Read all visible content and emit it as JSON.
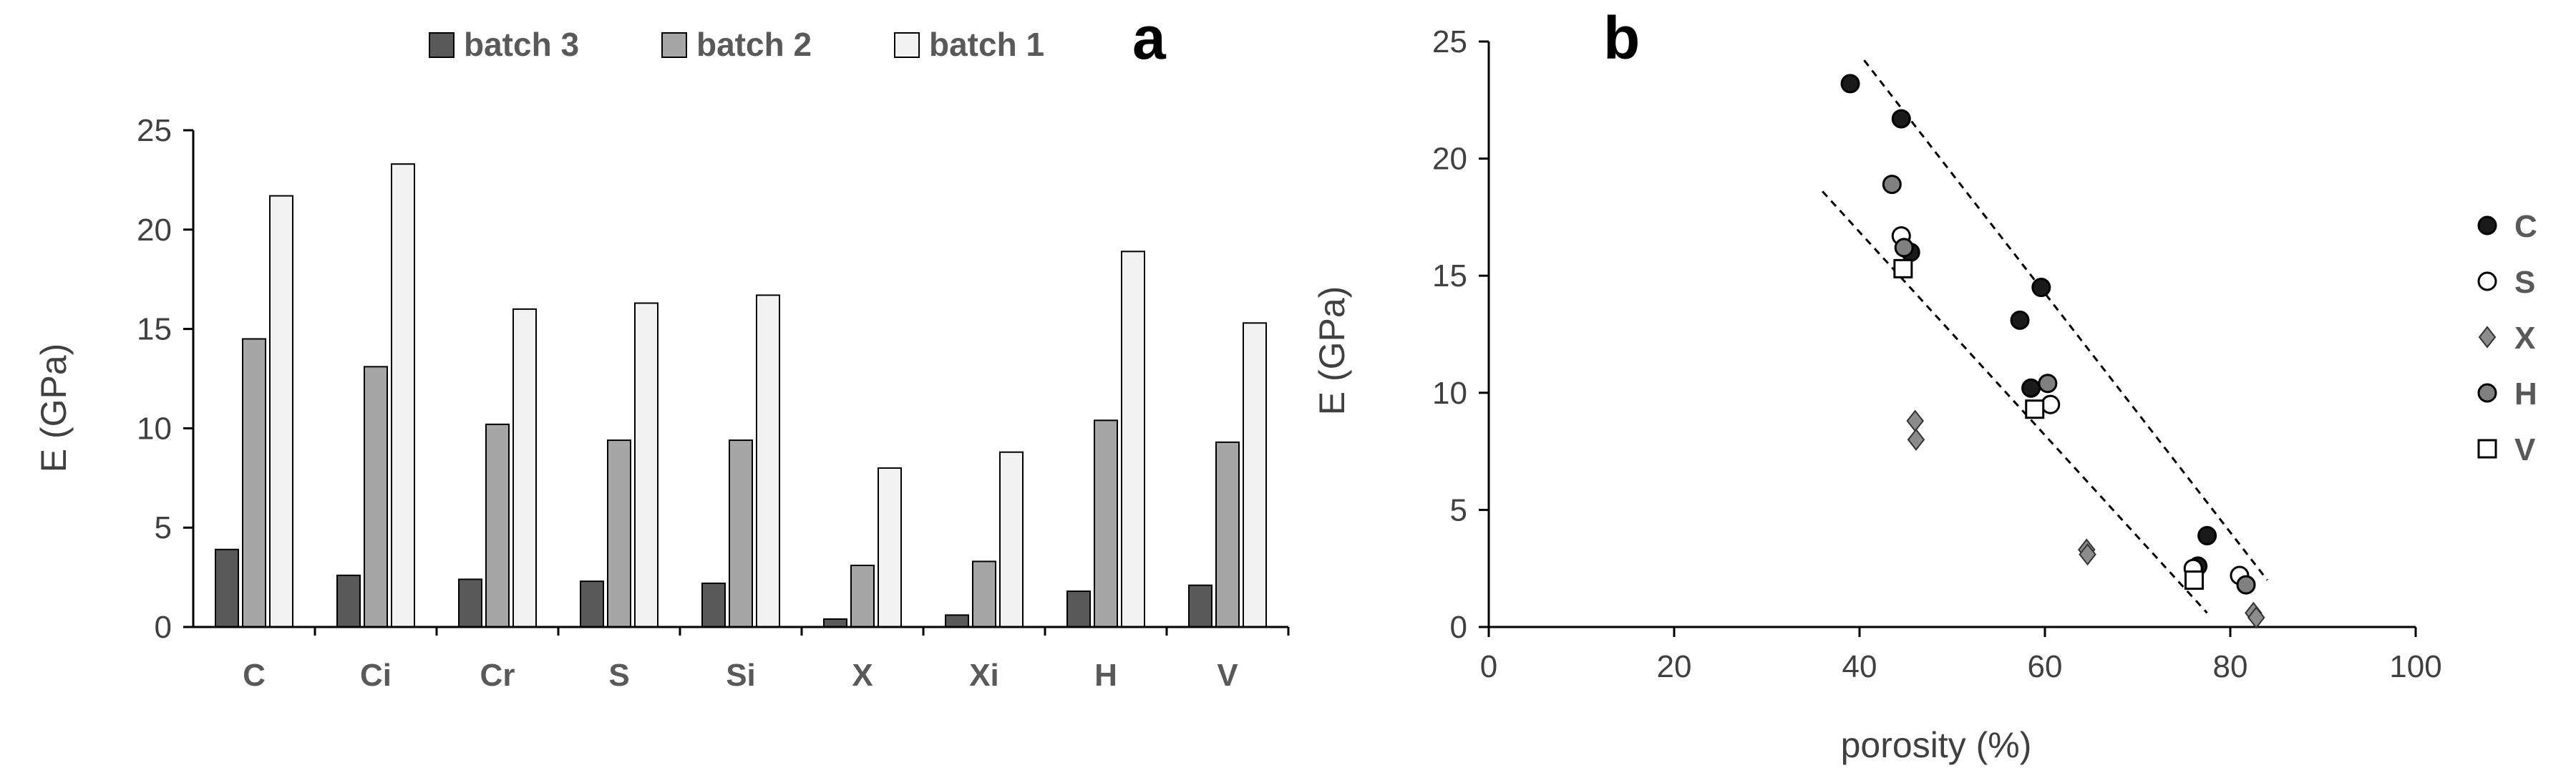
{
  "panels": {
    "a": {
      "letter": "a"
    },
    "b": {
      "letter": "b"
    }
  },
  "chart_data": [
    {
      "type": "bar",
      "panel": "a",
      "title": "",
      "xlabel": "",
      "ylabel": "E (GPa)",
      "ylim": [
        0,
        25
      ],
      "yticks": [
        0,
        5,
        10,
        15,
        20,
        25
      ],
      "grid": false,
      "legend_position": "top",
      "categories": [
        "C",
        "Ci",
        "Cr",
        "S",
        "Si",
        "X",
        "Xi",
        "H",
        "V"
      ],
      "series": [
        {
          "name": "batch 3",
          "color": "#595959",
          "values": [
            3.9,
            2.6,
            2.4,
            2.3,
            2.2,
            0.4,
            0.6,
            1.8,
            2.1
          ]
        },
        {
          "name": "batch 2",
          "color": "#a6a6a6",
          "values": [
            14.5,
            13.1,
            10.2,
            9.4,
            9.4,
            3.1,
            3.3,
            10.4,
            9.3
          ]
        },
        {
          "name": "batch 1",
          "color": "#f2f2f2",
          "values": [
            21.7,
            23.3,
            16.0,
            16.3,
            16.7,
            8.0,
            8.8,
            18.9,
            15.3
          ]
        }
      ],
      "legend_order": [
        0,
        1,
        2
      ]
    },
    {
      "type": "scatter",
      "panel": "b",
      "title": "",
      "xlabel": "porosity (%)",
      "ylabel": "E (GPa)",
      "xlim": [
        0,
        100
      ],
      "ylim": [
        0,
        25
      ],
      "xticks": [
        0,
        20,
        40,
        60,
        80,
        100
      ],
      "yticks": [
        0,
        5,
        10,
        15,
        20,
        25
      ],
      "grid": false,
      "legend_position": "right",
      "series": [
        {
          "name": "C",
          "marker": "circle",
          "fill": "#1a1a1a",
          "stroke": "#000000",
          "points": [
            [
              39,
              23.2
            ],
            [
              44.5,
              21.7
            ],
            [
              45.5,
              16.0
            ],
            [
              57.3,
              13.1
            ],
            [
              58.5,
              10.2
            ],
            [
              59.6,
              14.5
            ],
            [
              76.5,
              2.6
            ],
            [
              77.5,
              3.9
            ]
          ]
        },
        {
          "name": "S",
          "marker": "circle",
          "fill": "#ffffff",
          "stroke": "#000000",
          "points": [
            [
              44.5,
              16.7
            ],
            [
              60.6,
              9.5
            ],
            [
              76,
              2.5
            ],
            [
              81,
              2.2
            ]
          ]
        },
        {
          "name": "X",
          "marker": "diamond",
          "fill": "#8c8c8c",
          "stroke": "#333333",
          "points": [
            [
              46,
              8.8
            ],
            [
              46.1,
              8.0
            ],
            [
              64.5,
              3.3
            ],
            [
              64.6,
              3.1
            ],
            [
              82.5,
              0.6
            ],
            [
              82.8,
              0.4
            ]
          ]
        },
        {
          "name": "H",
          "marker": "circle",
          "fill": "#808080",
          "stroke": "#000000",
          "points": [
            [
              43.5,
              18.9
            ],
            [
              44.8,
              16.2
            ],
            [
              60.3,
              10.4
            ],
            [
              81.7,
              1.8
            ]
          ]
        },
        {
          "name": "V",
          "marker": "square",
          "fill": "#ffffff",
          "stroke": "#000000",
          "points": [
            [
              44.7,
              15.3
            ],
            [
              58.9,
              9.3
            ],
            [
              76.1,
              2.0
            ]
          ]
        }
      ],
      "trend_lines": [
        {
          "style": "dashed",
          "from": [
            40.5,
            24.2
          ],
          "to": [
            84,
            2.0
          ]
        },
        {
          "style": "dashed",
          "from": [
            36,
            18.6
          ],
          "to": [
            77.5,
            0.6
          ]
        }
      ]
    }
  ]
}
